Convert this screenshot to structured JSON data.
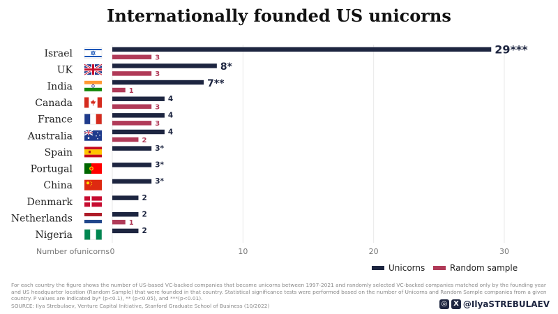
{
  "chart_data": {
    "type": "bar",
    "orientation": "horizontal",
    "title": "Internationally founded US unicorns",
    "xlabel": "Number ofunicorns",
    "xlim": [
      0,
      30
    ],
    "x_ticks": [
      "0",
      "10",
      "20",
      "30"
    ],
    "grid": true,
    "legend_position": "bottom-right",
    "categories": [
      "Israel",
      "UK",
      "India",
      "Canada",
      "France",
      "Australia",
      "Spain",
      "Portugal",
      "China",
      "Denmark",
      "Netherlands",
      "Nigeria"
    ],
    "series": [
      {
        "name": "Unicorns",
        "color": "#1d2540",
        "values": [
          29,
          8,
          7,
          4,
          4,
          4,
          3,
          3,
          3,
          2,
          2,
          2
        ],
        "labels": [
          "29***",
          "8*",
          "7**",
          "4",
          "4",
          "4",
          "3*",
          "3*",
          "3*",
          "2",
          "2",
          "2"
        ]
      },
      {
        "name": "Random sample",
        "color": "#b03a58",
        "values": [
          3,
          3,
          1,
          3,
          3,
          2,
          0,
          0,
          0,
          0,
          1,
          0
        ],
        "labels": [
          "3",
          "3",
          "1",
          "3",
          "3",
          "2",
          "",
          "",
          "",
          "",
          "1",
          ""
        ]
      }
    ],
    "flags": [
      "israel-flag-icon",
      "uk-flag-icon",
      "india-flag-icon",
      "canada-flag-icon",
      "france-flag-icon",
      "australia-flag-icon",
      "spain-flag-icon",
      "portugal-flag-icon",
      "china-flag-icon",
      "denmark-flag-icon",
      "netherlands-flag-icon",
      "nigeria-flag-icon"
    ]
  },
  "footnote": "For each country the figure shows the number of US-based VC-backed companies that became unicorns between 1997-2021 and randomly selected VC-backed companies matched only by the founding year and US headquarter location (Random Sample) that were founded in that country. Statistical significance tests were performed based on the number of Unicorns and Random Sample companies from a given country. P values are indicated by* (p<0.1), ** (p<0.05), and ***(p<0.01).",
  "source": "SOURCE: Ilya Strebulaev, Venture Capital Initiative, Stanford Graduate School of Business (10/2022)",
  "handle": "@IlyaSTREBULAEV",
  "social_icons": [
    "instagram-icon",
    "x-icon"
  ]
}
